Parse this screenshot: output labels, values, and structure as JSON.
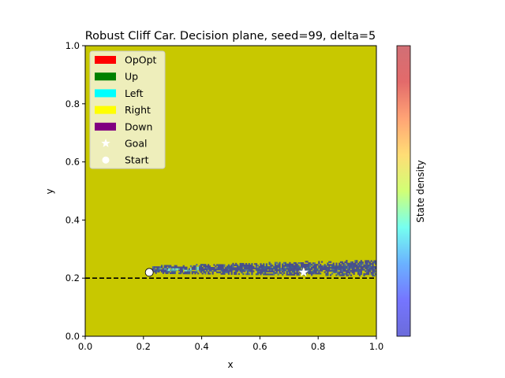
{
  "chart_data": {
    "type": "heatmap",
    "title": "Robust Cliff Car. Decision plane, seed=99, delta=5",
    "xlabel": "x",
    "ylabel": "y",
    "xlim": [
      0.0,
      1.0
    ],
    "ylim": [
      0.0,
      1.0
    ],
    "xticks": [
      "0.0",
      "0.2",
      "0.4",
      "0.6",
      "0.8",
      "1.0"
    ],
    "yticks": [
      "0.0",
      "0.2",
      "0.4",
      "0.6",
      "0.8",
      "1.0"
    ],
    "grid": false,
    "legend_position": "top-left",
    "decision_plane_action": "Right",
    "legend": [
      {
        "label": "OpOpt",
        "kind": "patch",
        "color": "#ff0000"
      },
      {
        "label": "Up",
        "kind": "patch",
        "color": "#008000"
      },
      {
        "label": "Left",
        "kind": "patch",
        "color": "#00ffff"
      },
      {
        "label": "Right",
        "kind": "patch",
        "color": "#ffff00"
      },
      {
        "label": "Down",
        "kind": "patch",
        "color": "#800080"
      },
      {
        "label": "Goal",
        "kind": "star",
        "color": "#ffffff"
      },
      {
        "label": "Start",
        "kind": "circle",
        "color": "#ffffff"
      }
    ],
    "plane_color": "#c8c800",
    "cliff_line": {
      "y": 0.2,
      "x": [
        0.0,
        1.0
      ],
      "style": "dashed",
      "color": "#000000"
    },
    "start": {
      "x": 0.22,
      "y": 0.22
    },
    "goal": {
      "x": 0.75,
      "y": 0.22
    },
    "density_band": {
      "x_start": 0.23,
      "x_end": 1.0,
      "y_center": 0.228,
      "y_halfwidth": 0.022,
      "note_peak_x": 0.32
    },
    "colorbar": {
      "label": "State density",
      "colormap": [
        "#5b5bd6",
        "#6666ff",
        "#5aa9ff",
        "#66ffee",
        "#ccff66",
        "#ffd966",
        "#ff9966",
        "#e05a5a",
        "#cc5f66"
      ]
    }
  }
}
